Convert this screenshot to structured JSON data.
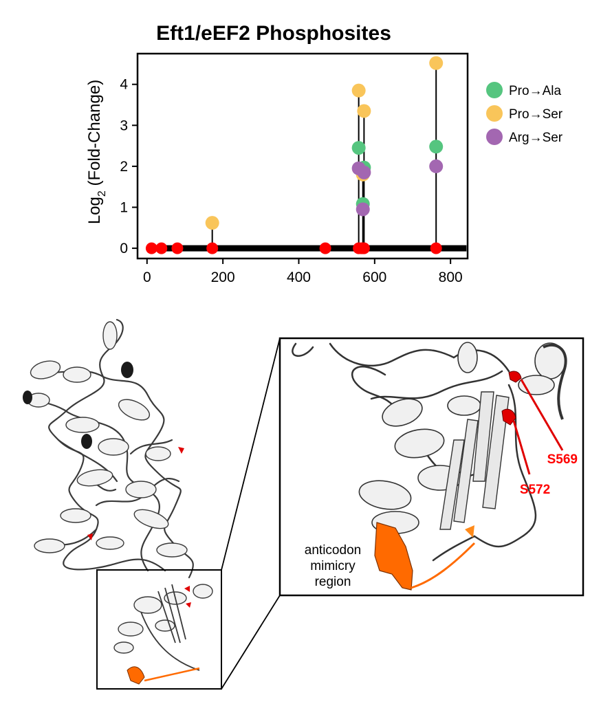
{
  "chart_data": {
    "type": "scatter",
    "title": "Eft1/eEF2 Phosphosites",
    "ylabel_main": "Log",
    "ylabel_sub": "2",
    "ylabel_rest": " (Fold-Change)",
    "xlim": [
      -25,
      845
    ],
    "ylim": [
      -0.25,
      4.75
    ],
    "xticks": [
      0,
      200,
      400,
      600,
      800
    ],
    "yticks": [
      0,
      1,
      2,
      3,
      4
    ],
    "grid": false,
    "legend_position": "right",
    "protein_length": 842,
    "site_color": "#ff0000",
    "sites_x": [
      12,
      38,
      80,
      172,
      470,
      558,
      565,
      569,
      572,
      762
    ],
    "series": [
      {
        "name": "Pro→Ala",
        "color": "#55c57f",
        "points": [
          [
            558,
            2.45
          ],
          [
            569,
            1.08
          ],
          [
            572,
            1.97
          ],
          [
            762,
            2.48
          ]
        ]
      },
      {
        "name": "Pro→Ser",
        "color": "#f9c55a",
        "points": [
          [
            172,
            0.62
          ],
          [
            558,
            3.85
          ],
          [
            569,
            1.8
          ],
          [
            572,
            3.35
          ],
          [
            762,
            4.52
          ]
        ]
      },
      {
        "name": "Arg→Ser",
        "color": "#a367b1",
        "points": [
          [
            558,
            1.95
          ],
          [
            569,
            0.95
          ],
          [
            572,
            1.85
          ],
          [
            762,
            2.0
          ]
        ]
      }
    ]
  },
  "structure": {
    "annotation": [
      "anticodon",
      "mimicry",
      "region"
    ],
    "site_labels": [
      "S569",
      "S572"
    ],
    "colors": {
      "ribbon": "#f2f2f2",
      "outline": "#3a3a3a",
      "site": "#e00000",
      "region": "#ff6a00"
    }
  }
}
